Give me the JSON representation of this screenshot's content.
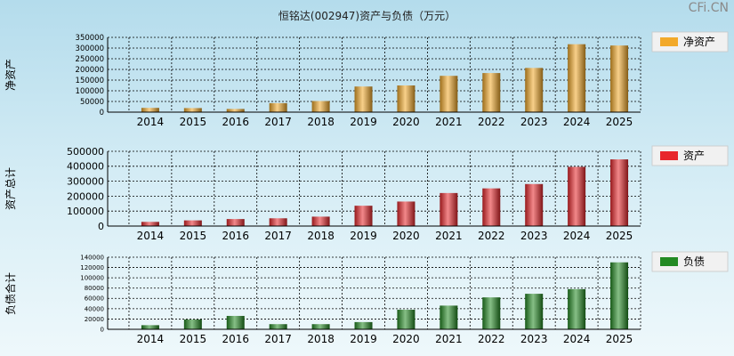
{
  "title": "恒铭达(002947)资产与负债（万元）",
  "watermark": "CFi.CN",
  "colors": {
    "net_assets": "#f2a92a",
    "total_assets": "#e8262b",
    "liabilities": "#238a23",
    "legend_bg": "#f1f1f1"
  },
  "chart_data": [
    {
      "type": "bar",
      "ylabel": "净资产",
      "legend": "净资产",
      "series_key": "net_assets",
      "categories": [
        "2014",
        "2015",
        "2016",
        "2017",
        "2018",
        "2019",
        "2020",
        "2021",
        "2022",
        "2023",
        "2024",
        "2025"
      ],
      "values": [
        20000,
        19000,
        15000,
        42000,
        52000,
        120000,
        125000,
        170000,
        183000,
        207000,
        318000,
        312000
      ],
      "ylim": [
        0,
        350000
      ],
      "ticks": [
        0,
        50000,
        100000,
        150000,
        200000,
        250000,
        300000,
        350000
      ],
      "tick_labels": [
        "0",
        "50000",
        "100000",
        "150000",
        "200000",
        "250000",
        "300000",
        "350000"
      ]
    },
    {
      "type": "bar",
      "ylabel": "资产总计",
      "legend": "资产",
      "series_key": "total_assets",
      "categories": [
        "2014",
        "2015",
        "2016",
        "2017",
        "2018",
        "2019",
        "2020",
        "2021",
        "2022",
        "2023",
        "2024",
        "2025"
      ],
      "values": [
        28000,
        38000,
        47000,
        52000,
        63000,
        136000,
        164000,
        221000,
        252000,
        281000,
        396000,
        446000
      ],
      "ylim": [
        0,
        500000
      ],
      "ticks": [
        0,
        100000,
        200000,
        300000,
        400000,
        500000
      ],
      "tick_labels": [
        "0",
        "100000",
        "200000",
        "300000",
        "400000",
        "500000"
      ]
    },
    {
      "type": "bar",
      "ylabel": "负债合计",
      "legend": "负债",
      "series_key": "liabilities",
      "categories": [
        "2014",
        "2015",
        "2016",
        "2017",
        "2018",
        "2019",
        "2020",
        "2021",
        "2022",
        "2023",
        "2024",
        "2025"
      ],
      "values": [
        8000,
        19000,
        26000,
        10000,
        10000,
        14000,
        38000,
        46000,
        62000,
        69000,
        78000,
        130000
      ],
      "ylim": [
        0,
        140000
      ],
      "ticks": [
        0,
        20000,
        40000,
        60000,
        80000,
        100000,
        120000,
        140000
      ],
      "tick_labels": [
        "0",
        "20000",
        "40000",
        "60000",
        "80000",
        "100000",
        "120000",
        "140000"
      ]
    }
  ]
}
